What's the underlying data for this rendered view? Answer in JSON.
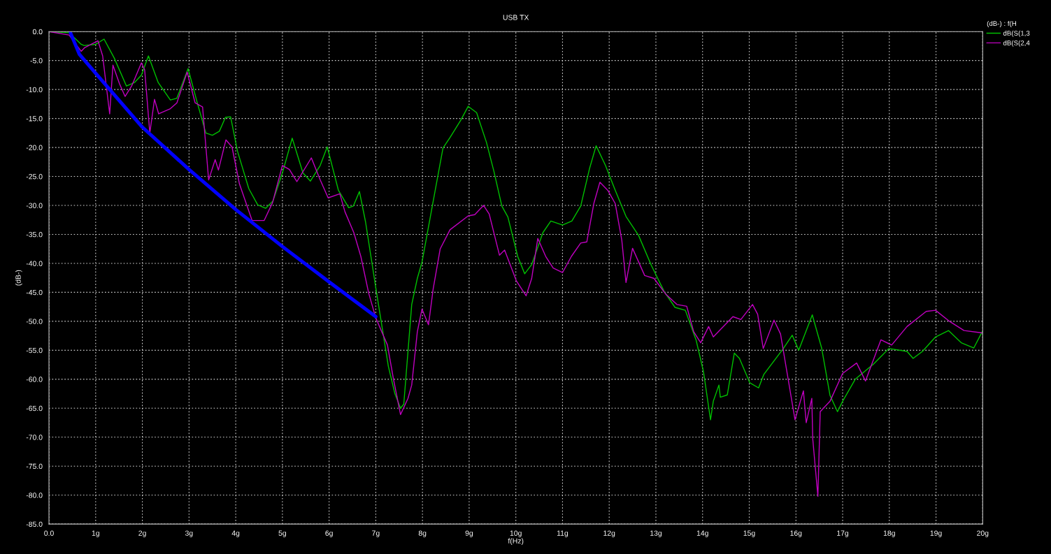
{
  "chart_data": {
    "type": "line",
    "title": "USB TX",
    "xlabel": "f(Hz)",
    "ylabel": "(dB-)",
    "legend_title": "(dB-) : f(H",
    "xlim": [
      0,
      20
    ],
    "ylim": [
      -85,
      0
    ],
    "xticks": [
      {
        "value": 0,
        "label": "0.0"
      },
      {
        "value": 1,
        "label": "1g"
      },
      {
        "value": 2,
        "label": "2g"
      },
      {
        "value": 3,
        "label": "3g"
      },
      {
        "value": 4,
        "label": "4g"
      },
      {
        "value": 5,
        "label": "5g"
      },
      {
        "value": 6,
        "label": "6g"
      },
      {
        "value": 7,
        "label": "7g"
      },
      {
        "value": 8,
        "label": "8g"
      },
      {
        "value": 9,
        "label": "9g"
      },
      {
        "value": 10,
        "label": "10g"
      },
      {
        "value": 11,
        "label": "11g"
      },
      {
        "value": 12,
        "label": "12g"
      },
      {
        "value": 13,
        "label": "13g"
      },
      {
        "value": 14,
        "label": "14g"
      },
      {
        "value": 15,
        "label": "15g"
      },
      {
        "value": 16,
        "label": "16g"
      },
      {
        "value": 17,
        "label": "17g"
      },
      {
        "value": 18,
        "label": "18g"
      },
      {
        "value": 19,
        "label": "19g"
      },
      {
        "value": 20,
        "label": "20g"
      }
    ],
    "yticks": [
      {
        "value": 0,
        "label": "0.0"
      },
      {
        "value": -5,
        "label": "-5.0"
      },
      {
        "value": -10,
        "label": "-10.0"
      },
      {
        "value": -15,
        "label": "-15.0"
      },
      {
        "value": -20,
        "label": "-20.0"
      },
      {
        "value": -25,
        "label": "-25.0"
      },
      {
        "value": -30,
        "label": "-30.0"
      },
      {
        "value": -35,
        "label": "-35.0"
      },
      {
        "value": -40,
        "label": "-40.0"
      },
      {
        "value": -45,
        "label": "-45.0"
      },
      {
        "value": -50,
        "label": "-50.0"
      },
      {
        "value": -55,
        "label": "-55.0"
      },
      {
        "value": -60,
        "label": "-60.0"
      },
      {
        "value": -65,
        "label": "-65.0"
      },
      {
        "value": -70,
        "label": "-70.0"
      },
      {
        "value": -75,
        "label": "-75.0"
      },
      {
        "value": -80,
        "label": "-80.0"
      },
      {
        "value": -85,
        "label": "-85.0"
      }
    ],
    "grid": true,
    "legend": "top right",
    "marker": "none",
    "line_style": "solid",
    "series": [
      {
        "name": "dB(S(1,3",
        "color": "#00c000",
        "x": [
          0,
          0.43,
          0.69,
          0.75,
          1.0,
          1.18,
          1.4,
          1.66,
          1.83,
          1.98,
          2.13,
          2.34,
          2.6,
          2.74,
          2.98,
          3.17,
          3.36,
          3.5,
          3.65,
          3.78,
          3.89,
          4.04,
          4.28,
          4.47,
          4.64,
          4.8,
          5.0,
          5.21,
          5.44,
          5.6,
          5.81,
          5.96,
          6.2,
          6.42,
          6.52,
          6.65,
          6.78,
          7.02,
          7.27,
          7.41,
          7.53,
          7.6,
          7.77,
          7.89,
          7.99,
          8.22,
          8.44,
          8.59,
          8.82,
          8.98,
          9.16,
          9.37,
          9.53,
          9.7,
          9.83,
          10.04,
          10.19,
          10.34,
          10.58,
          10.75,
          11.0,
          11.2,
          11.39,
          11.58,
          11.72,
          11.92,
          12.13,
          12.36,
          12.63,
          12.9,
          13.18,
          13.41,
          13.63,
          13.86,
          14.02,
          14.17,
          14.23,
          14.35,
          14.38,
          14.53,
          14.68,
          14.79,
          15.01,
          15.2,
          15.31,
          15.73,
          15.92,
          16.06,
          16.35,
          16.55,
          16.73,
          16.89,
          17.0,
          17.27,
          17.66,
          17.99,
          18.38,
          18.51,
          18.71,
          18.99,
          19.27,
          19.54,
          19.81,
          19.99
        ],
        "values": [
          0,
          -0.2,
          -2.2,
          -2.4,
          -2.2,
          -1.3,
          -4.6,
          -9.4,
          -8.8,
          -7.5,
          -4.2,
          -8.8,
          -11.8,
          -11.5,
          -6.4,
          -12.1,
          -17.5,
          -17.9,
          -17.2,
          -14.8,
          -14.7,
          -20.7,
          -27.1,
          -29.9,
          -30.5,
          -29.2,
          -24.4,
          -18.4,
          -24.4,
          -25.8,
          -23.1,
          -19.9,
          -27.4,
          -30.4,
          -30.1,
          -27.6,
          -32.8,
          -45.2,
          -57.8,
          -62.5,
          -65.0,
          -64.3,
          -47.1,
          -42.6,
          -39.8,
          -29.7,
          -20.1,
          -18.3,
          -15.3,
          -12.9,
          -14.0,
          -19.1,
          -24.1,
          -30.1,
          -32.0,
          -38.8,
          -41.8,
          -40.2,
          -34.7,
          -32.7,
          -33.4,
          -32.7,
          -30.1,
          -23.6,
          -19.7,
          -23.1,
          -27.4,
          -31.9,
          -35.2,
          -40.3,
          -44.9,
          -47.6,
          -48.1,
          -53.2,
          -58.7,
          -67.0,
          -63.8,
          -61.0,
          -63.1,
          -62.7,
          -55.5,
          -56.4,
          -60.6,
          -61.5,
          -59.2,
          -54.7,
          -52.4,
          -55.0,
          -48.9,
          -54.6,
          -62.8,
          -65.6,
          -63.8,
          -60.0,
          -57.4,
          -54.7,
          -55.2,
          -56.4,
          -55.2,
          -52.7,
          -51.6,
          -53.7,
          -54.6,
          -51.8
        ]
      },
      {
        "name": "dB(S(2,4",
        "color": "#c000c0",
        "x": [
          0,
          0.43,
          0.69,
          0.76,
          1.05,
          1.15,
          1.3,
          1.37,
          1.51,
          1.63,
          1.77,
          1.98,
          2.05,
          2.16,
          2.26,
          2.35,
          2.6,
          2.74,
          2.96,
          3.13,
          3.29,
          3.42,
          3.56,
          3.63,
          3.79,
          3.92,
          4.08,
          4.35,
          4.61,
          4.79,
          5.0,
          5.15,
          5.31,
          5.62,
          5.81,
          5.98,
          6.23,
          6.34,
          6.53,
          6.68,
          6.85,
          7.0,
          7.25,
          7.38,
          7.53,
          7.69,
          7.77,
          7.89,
          7.99,
          8.13,
          8.23,
          8.38,
          8.59,
          8.98,
          9.12,
          9.31,
          9.43,
          9.65,
          9.76,
          10.01,
          10.22,
          10.34,
          10.47,
          10.64,
          10.8,
          11.0,
          11.19,
          11.39,
          11.52,
          11.67,
          11.8,
          11.97,
          12.13,
          12.27,
          12.36,
          12.5,
          12.76,
          12.96,
          13.21,
          13.45,
          13.66,
          13.81,
          13.96,
          14.13,
          14.23,
          14.65,
          14.82,
          15.07,
          15.18,
          15.3,
          15.53,
          15.67,
          15.98,
          16.16,
          16.22,
          16.34,
          16.36,
          16.47,
          16.52,
          16.73,
          17.0,
          17.3,
          17.49,
          17.82,
          18.05,
          18.38,
          18.79,
          18.99,
          19.27,
          19.6,
          19.99
        ],
        "values": [
          0,
          -0.6,
          -3.4,
          -2.8,
          -1.6,
          -4.2,
          -14.2,
          -5.8,
          -9.0,
          -11.2,
          -9.4,
          -5.4,
          -6.6,
          -17.5,
          -11.7,
          -14.2,
          -13.3,
          -12.3,
          -7.0,
          -12.3,
          -13.0,
          -25.6,
          -22.1,
          -23.9,
          -18.7,
          -19.9,
          -26.3,
          -32.6,
          -32.6,
          -29.5,
          -23.1,
          -23.8,
          -25.9,
          -21.8,
          -25.6,
          -28.7,
          -28.0,
          -31.1,
          -34.7,
          -38.8,
          -45.2,
          -49.4,
          -54.1,
          -60.0,
          -66.1,
          -63.3,
          -61.0,
          -51.8,
          -47.9,
          -50.6,
          -44.4,
          -37.5,
          -34.2,
          -31.8,
          -31.6,
          -30.0,
          -31.5,
          -38.6,
          -37.7,
          -43.0,
          -45.6,
          -42.6,
          -35.7,
          -38.8,
          -40.8,
          -41.6,
          -38.8,
          -36.5,
          -36.3,
          -29.7,
          -26.0,
          -27.4,
          -29.7,
          -36.0,
          -43.3,
          -37.4,
          -42.1,
          -42.6,
          -45.3,
          -47.1,
          -47.4,
          -51.8,
          -53.7,
          -50.9,
          -52.7,
          -49.2,
          -49.7,
          -47.1,
          -48.8,
          -54.7,
          -49.8,
          -52.2,
          -67.0,
          -62.0,
          -67.5,
          -63.3,
          -70.3,
          -80.2,
          -65.6,
          -63.8,
          -59.0,
          -57.2,
          -60.3,
          -53.2,
          -54.1,
          -50.9,
          -48.3,
          -48.1,
          -49.9,
          -51.6,
          -52.0
        ]
      },
      {
        "color": "#0000ff",
        "x": [
          0.46,
          0.65,
          1.0,
          2.0,
          3.0,
          4.0,
          5.0,
          6.0,
          7.0
        ],
        "values": [
          -0.2,
          -3.9,
          -7.2,
          -16.5,
          -23.8,
          -30.7,
          -37.1,
          -43.2,
          -49.2
        ]
      }
    ]
  }
}
